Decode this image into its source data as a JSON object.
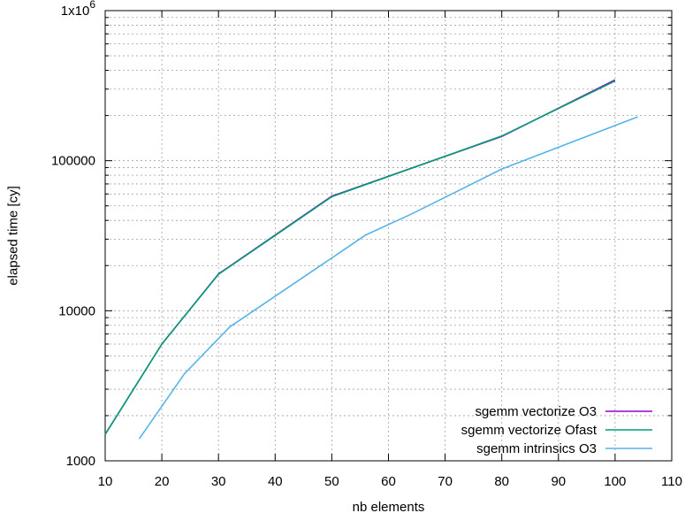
{
  "chart_data": {
    "type": "line",
    "title": "",
    "xlabel": "nb elements",
    "ylabel": "elapsed time [cy]",
    "xlim": [
      10,
      110
    ],
    "ylim": [
      1000,
      1000000
    ],
    "yscale": "log",
    "x_ticks": [
      10,
      20,
      30,
      40,
      50,
      60,
      70,
      80,
      90,
      100,
      110
    ],
    "y_ticks": [
      {
        "value": 1000,
        "label": "1000"
      },
      {
        "value": 10000,
        "label": "10000"
      },
      {
        "value": 100000,
        "label": "100000"
      },
      {
        "value": 1000000,
        "label": "1x10",
        "sup": "6"
      }
    ],
    "grid": true,
    "legend_position": "bottom-right",
    "series": [
      {
        "name": "sgemm vectorize O3",
        "color": "#9400d3",
        "points": [
          [
            10,
            1500
          ],
          [
            20,
            6000
          ],
          [
            30,
            17600
          ],
          [
            50,
            58000
          ],
          [
            80,
            145000
          ],
          [
            100,
            345000
          ]
        ]
      },
      {
        "name": "sgemm vectorize Ofast",
        "color": "#009e73",
        "points": [
          [
            10,
            1500
          ],
          [
            20,
            6000
          ],
          [
            30,
            17500
          ],
          [
            50,
            57500
          ],
          [
            80,
            146000
          ],
          [
            100,
            340000
          ]
        ]
      },
      {
        "name": "sgemm intrinsics O3",
        "color": "#56b4e9",
        "points": [
          [
            16,
            1400
          ],
          [
            24,
            3800
          ],
          [
            32,
            7800
          ],
          [
            48,
            20000
          ],
          [
            56,
            32000
          ],
          [
            64,
            44000
          ],
          [
            80,
            88000
          ],
          [
            104,
            196000
          ]
        ]
      }
    ]
  }
}
